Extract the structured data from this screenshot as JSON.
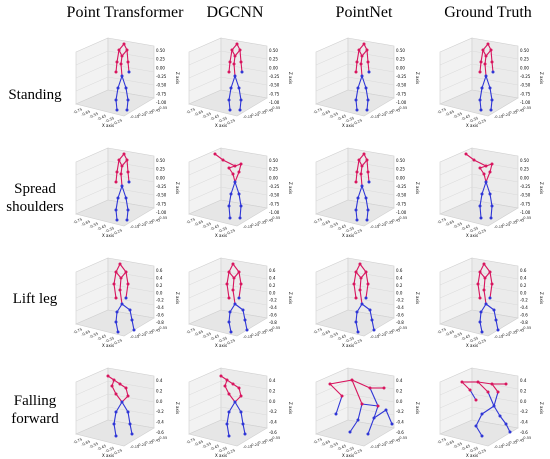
{
  "columns": [
    "Point Transformer",
    "DGCNN",
    "PointNet",
    "Ground Truth"
  ],
  "rows": [
    {
      "label_lines": [
        "Standing"
      ]
    },
    {
      "label_lines": [
        "Spread",
        "shoulders"
      ]
    },
    {
      "label_lines": [
        "Lift leg"
      ]
    },
    {
      "label_lines": [
        "Falling",
        "forward"
      ]
    }
  ],
  "axis_titles": {
    "x": "X axis",
    "z": "Z axis"
  },
  "z_ticks": [
    [
      "0.50",
      "0.25",
      "0.00",
      "-0.25",
      "-0.50",
      "-0.75",
      "-1.00"
    ],
    [
      "0.50",
      "0.25",
      "0.00",
      "-0.25",
      "-0.50",
      "-0.75",
      "-1.00"
    ],
    [
      "0.6",
      "0.4",
      "0.2",
      "0.0",
      "-0.2",
      "-0.4",
      "-0.6",
      "-0.8"
    ],
    [
      "0.4",
      "0.2",
      "0.0",
      "-0.2",
      "-0.4",
      "-0.6"
    ]
  ],
  "colors": {
    "upper": "#d8155e",
    "lower": "#2f36d6",
    "grid": "#d9d9d9",
    "pane": "#f2f2f2"
  }
}
